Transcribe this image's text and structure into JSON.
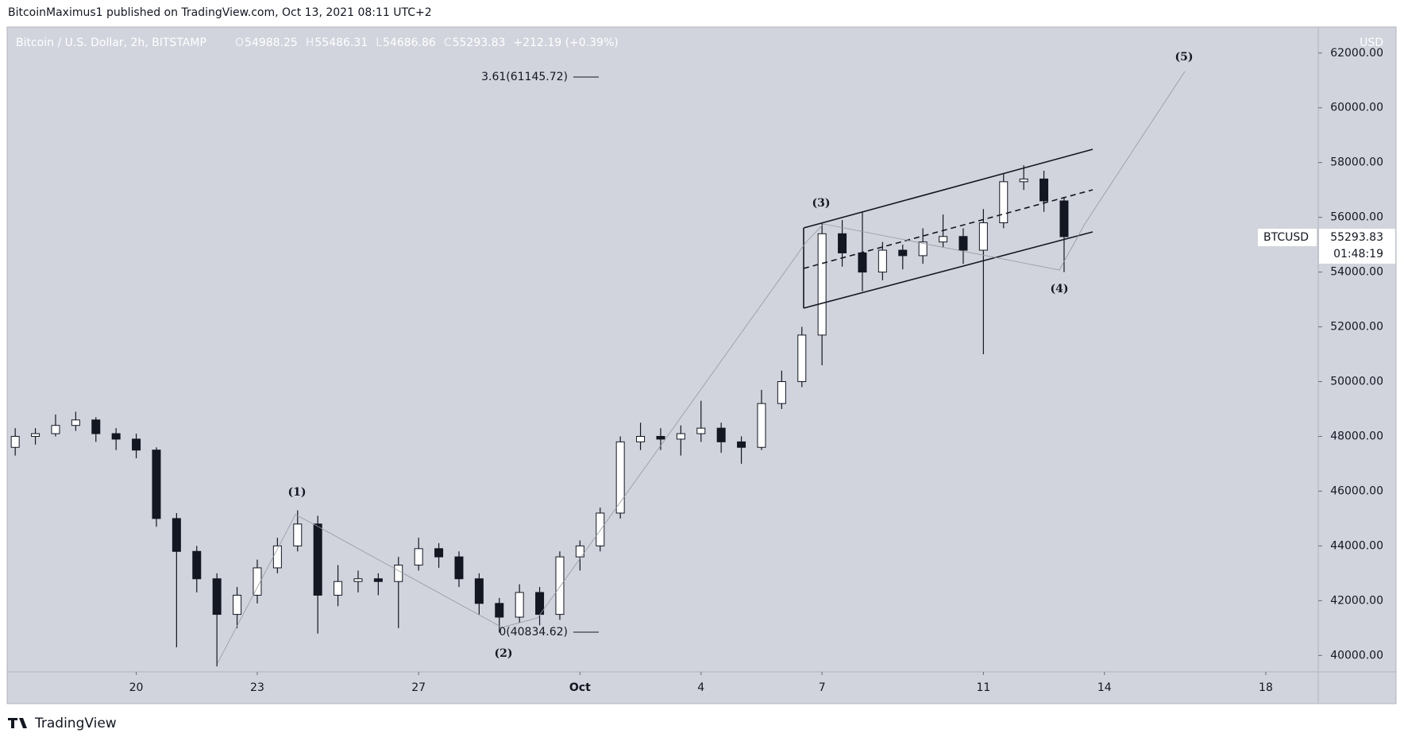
{
  "header": {
    "publisher": "BitcoinMaximus1 published on TradingView.com, Oct 13, 2021 08:11 UTC+2",
    "footer": "TradingView"
  },
  "chart_data": {
    "type": "candlestick",
    "title": "Bitcoin / U.S. Dollar, 2h, BITSTAMP",
    "ohlc_labels": [
      "O",
      "H",
      "L",
      "C"
    ],
    "ohlc_values": [
      54988.25,
      55486.31,
      54686.86,
      55293.83
    ],
    "change": "+212.19 (+0.39%)",
    "currency": "USD",
    "symbol": "BTCUSD",
    "last_price": 55293.83,
    "countdown": "01:48:19",
    "annotations": [
      "(1)",
      "(2)",
      "(3)",
      "(4)",
      "(5)",
      "3.61(61145.72)",
      "0(40834.62)"
    ],
    "up_color": "#ffffff",
    "down_color": "#131722",
    "wick_color": "#131722",
    "x": [
      17,
      17.5,
      18,
      18.5,
      19,
      19.5,
      20,
      20.5,
      21,
      21.5,
      22,
      22.5,
      23,
      23.5,
      24,
      24.5,
      25,
      25.5,
      26,
      26.5,
      27,
      27.5,
      28,
      28.5,
      29,
      29.5,
      30,
      30.5,
      31,
      31.5,
      32,
      32.5,
      33,
      33.5,
      34,
      34.5,
      35,
      35.5,
      36,
      36.5,
      37,
      37.5,
      38,
      38.5,
      39,
      39.5,
      40,
      40.5,
      41,
      41.5,
      42,
      42.5,
      43
    ],
    "open": [
      47600,
      48000,
      48100,
      48400,
      48600,
      48100,
      47900,
      47500,
      45000,
      43800,
      42800,
      41500,
      42200,
      43200,
      44000,
      44800,
      42200,
      42700,
      42800,
      42700,
      43300,
      43900,
      43600,
      42800,
      41900,
      41400,
      42300,
      41500,
      43600,
      44000,
      45200,
      47800,
      48000,
      47900,
      48100,
      48300,
      47800,
      47600,
      49200,
      50000,
      51700,
      55400,
      54700,
      54000,
      54800,
      54600,
      55100,
      55300,
      54800,
      55800,
      57300,
      57400,
      56600
    ],
    "high": [
      48300,
      48300,
      48800,
      48900,
      48700,
      48300,
      48100,
      47600,
      45200,
      44000,
      43000,
      42500,
      43500,
      44300,
      45300,
      45100,
      43300,
      43100,
      43000,
      43600,
      44300,
      44100,
      43800,
      43000,
      42100,
      42600,
      42500,
      43800,
      44200,
      45400,
      48000,
      48500,
      48300,
      48400,
      49300,
      48500,
      48000,
      49700,
      50400,
      52000,
      55800,
      55900,
      56200,
      55100,
      55000,
      55600,
      56100,
      55600,
      56300,
      57600,
      57900,
      57700,
      56700
    ],
    "low": [
      47300,
      47700,
      48000,
      48200,
      47800,
      47500,
      47200,
      44700,
      40300,
      42300,
      39600,
      41000,
      41900,
      43000,
      43800,
      40800,
      41800,
      42300,
      42200,
      41000,
      43100,
      43200,
      42500,
      41500,
      40835,
      41200,
      41100,
      41300,
      43100,
      43800,
      45000,
      47500,
      47500,
      47300,
      47800,
      47400,
      47000,
      47500,
      49000,
      49800,
      50600,
      54200,
      53300,
      53700,
      54100,
      54300,
      54900,
      54300,
      51000,
      55600,
      57000,
      56200,
      54000
    ],
    "close": [
      48000,
      48100,
      48400,
      48600,
      48100,
      47900,
      47500,
      45000,
      43800,
      42800,
      41500,
      42200,
      43200,
      44000,
      44800,
      42200,
      42700,
      42800,
      42700,
      43300,
      43900,
      43600,
      42800,
      41900,
      41400,
      42300,
      41500,
      43600,
      44000,
      45200,
      47800,
      48000,
      47900,
      48100,
      48300,
      47800,
      47600,
      49200,
      50000,
      51700,
      55400,
      54700,
      54000,
      54800,
      54600,
      55100,
      55300,
      54800,
      55800,
      57300,
      57400,
      56600,
      55293.83
    ],
    "xlim": [
      16.8,
      49.3
    ],
    "xticks": [
      20,
      23,
      27,
      {
        "value": 31,
        "label": "Oct"
      },
      {
        "value": 34,
        "label": "4"
      },
      {
        "value": 37,
        "label": "7"
      },
      {
        "value": 41,
        "label": "11"
      },
      {
        "value": 44,
        "label": "14"
      },
      {
        "value": 48,
        "label": "18"
      }
    ],
    "ylim": [
      39400,
      62950
    ],
    "yticks": [
      {
        "value": 40000,
        "label": "40000.00"
      },
      {
        "value": 42000,
        "label": "42000.00"
      },
      {
        "value": 44000,
        "label": "44000.00"
      },
      {
        "value": 46000,
        "label": "46000.00"
      },
      {
        "value": 48000,
        "label": "48000.00"
      },
      {
        "value": 50000,
        "label": "50000.00"
      },
      {
        "value": 52000,
        "label": "52000.00"
      },
      {
        "value": 54000,
        "label": "54000.00"
      },
      {
        "value": 56000,
        "label": "56000.00"
      },
      {
        "value": 58000,
        "label": "58000.00"
      },
      {
        "value": 60000,
        "label": "60000.00"
      },
      {
        "value": 62000,
        "label": "62000.00"
      }
    ],
    "grid": false
  }
}
